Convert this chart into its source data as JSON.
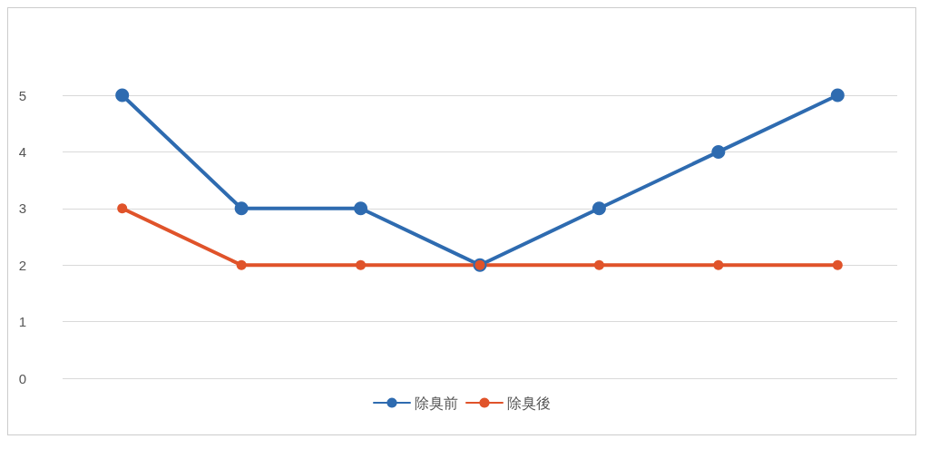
{
  "chart_data": {
    "type": "line",
    "categories": [
      null,
      null,
      null,
      null,
      null,
      null,
      null
    ],
    "series": [
      {
        "name": "除臭前",
        "color": "#2e6bb0",
        "values": [
          5,
          3,
          3,
          2,
          3,
          4,
          5
        ]
      },
      {
        "name": "除臭後",
        "color": "#e0532a",
        "values": [
          3,
          2,
          2,
          2,
          2,
          2,
          2
        ]
      }
    ],
    "ylim": [
      0,
      5
    ],
    "yticks": [
      0,
      1,
      2,
      3,
      4,
      5
    ],
    "grid": "y",
    "legend": "bottom",
    "marker": "circle",
    "line_style": "solid"
  }
}
